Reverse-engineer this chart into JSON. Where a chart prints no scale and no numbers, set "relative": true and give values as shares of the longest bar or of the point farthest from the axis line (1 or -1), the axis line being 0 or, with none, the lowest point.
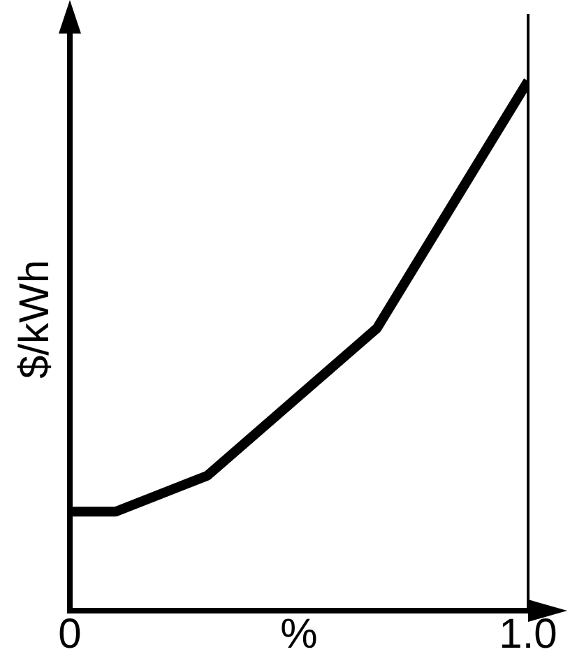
{
  "chart_data": {
    "type": "line",
    "xlabel": "%",
    "ylabel": "$/kWh",
    "relative": true,
    "x": [
      0,
      0.1,
      0.3,
      0.67,
      1
    ],
    "series": [
      {
        "color": "#000000",
        "values": [
          0.187,
          0.187,
          0.255,
          0.533,
          1
        ]
      }
    ],
    "xlim": [
      0,
      1
    ],
    "xticks": [
      0,
      {
        "value": 1,
        "label": "1.0"
      }
    ],
    "ref_lines": [
      {
        "axis": "x",
        "value": 1,
        "color": "#000000"
      }
    ],
    "legend": false,
    "marker": "none",
    "line_style": "solid"
  }
}
